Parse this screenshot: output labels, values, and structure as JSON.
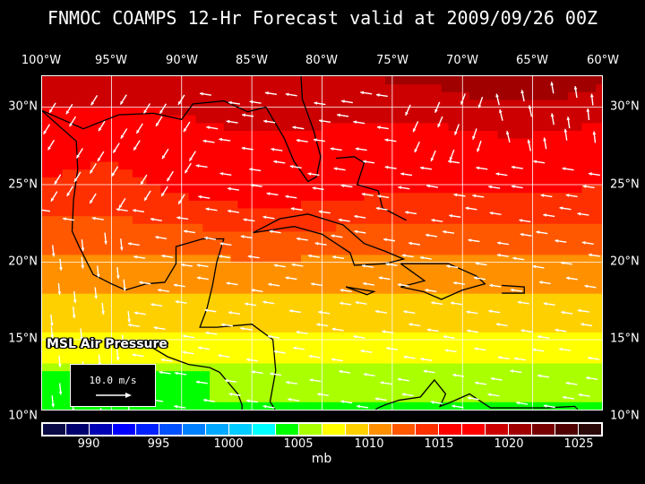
{
  "title": "FNMOC COAMPS 12-Hr Forecast valid at 2009/09/26 00Z",
  "lon_labels": [
    "100°W",
    "95°W",
    "90°W",
    "85°W",
    "80°W",
    "75°W",
    "70°W",
    "65°W",
    "60°W"
  ],
  "lat_labels": [
    "30°N",
    "25°N",
    "20°N",
    "15°N",
    "10°N"
  ],
  "field_label": "MSL Air Pressure",
  "reference_vector": "10.0 m/s",
  "colorbar": {
    "labels": [
      "990",
      "995",
      "1000",
      "1005",
      "1010",
      "1015",
      "1020",
      "1025"
    ],
    "unit": "mb",
    "colors": [
      "#0a0a46",
      "#00006e",
      "#0000b4",
      "#0000ff",
      "#0020ff",
      "#0050ff",
      "#0080ff",
      "#00a8ff",
      "#00ccff",
      "#00ffff",
      "#00ff00",
      "#aaff00",
      "#ffff00",
      "#ffd000",
      "#ff9000",
      "#ff5800",
      "#ff3000",
      "#ff0000",
      "#ff0000",
      "#cc0000",
      "#a00000",
      "#780000",
      "#500000",
      "#2a0808"
    ]
  }
}
